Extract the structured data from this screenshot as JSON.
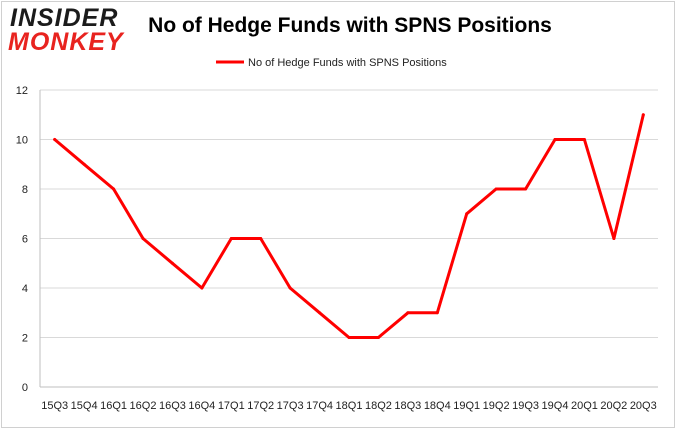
{
  "brand": {
    "logo_line1": "INSIDER",
    "logo_line2": "MONKEY"
  },
  "colors": {
    "series": "#ff0000",
    "grid": "#d9d9d9",
    "logo_dark": "#1b1b1b",
    "logo_red": "#e8231f"
  },
  "chart_data": {
    "type": "line",
    "title": "No of Hedge Funds with SPNS Positions",
    "xlabel": "",
    "ylabel": "",
    "ylim": [
      0,
      12
    ],
    "yticks": [
      0,
      2,
      4,
      6,
      8,
      10,
      12
    ],
    "grid": true,
    "legend_position": "top-center",
    "categories": [
      "15Q3",
      "15Q4",
      "16Q1",
      "16Q2",
      "16Q3",
      "16Q4",
      "17Q1",
      "17Q2",
      "17Q3",
      "17Q4",
      "18Q1",
      "18Q2",
      "18Q3",
      "18Q4",
      "19Q1",
      "19Q2",
      "19Q3",
      "19Q4",
      "20Q1",
      "20Q2",
      "20Q3"
    ],
    "series": [
      {
        "name": "No of Hedge Funds with SPNS Positions",
        "values": [
          10,
          9,
          8,
          6,
          5,
          4,
          6,
          6,
          4,
          3,
          2,
          2,
          3,
          3,
          7,
          8,
          8,
          10,
          10,
          6,
          11
        ]
      }
    ]
  }
}
